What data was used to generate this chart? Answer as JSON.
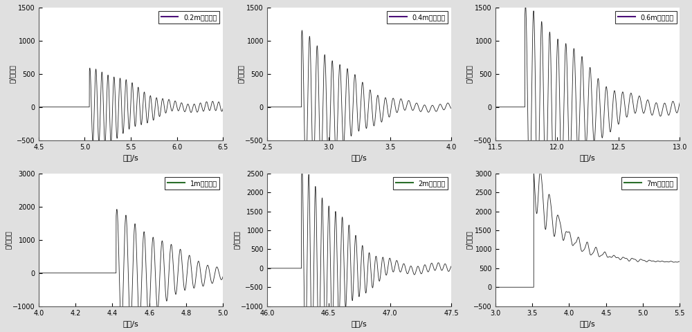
{
  "subplots": [
    {
      "legend_label": "0.2m冲击高度",
      "xlim": [
        4.5,
        6.5
      ],
      "xticks": [
        4.5,
        5.0,
        5.5,
        6.0,
        6.5
      ],
      "ylim": [
        -500,
        1500
      ],
      "yticks": [
        -500,
        0,
        500,
        1000,
        1500
      ],
      "impact_time": 5.05,
      "peak": 480,
      "decay_rate": 1.5,
      "freq": 15.0,
      "secondary_amp": 0.55,
      "line_color": "#222222",
      "row": 0,
      "col": 0
    },
    {
      "legend_label": "0.4m冲击高度",
      "xlim": [
        2.5,
        4.0
      ],
      "xticks": [
        2.5,
        3.0,
        3.5,
        4.0
      ],
      "ylim": [
        -500,
        1500
      ],
      "yticks": [
        -500,
        0,
        500,
        1000,
        1500
      ],
      "impact_time": 2.78,
      "peak": 950,
      "decay_rate": 2.5,
      "freq": 16.0,
      "secondary_amp": 0.55,
      "line_color": "#222222",
      "row": 0,
      "col": 1
    },
    {
      "legend_label": "0.6m冲击高度",
      "xlim": [
        11.5,
        13.0
      ],
      "xticks": [
        11.5,
        12.0,
        12.5,
        13.0
      ],
      "ylim": [
        -500,
        1500
      ],
      "yticks": [
        -500,
        0,
        500,
        1000,
        1500
      ],
      "impact_time": 11.74,
      "peak": 1260,
      "decay_rate": 2.0,
      "freq": 15.0,
      "secondary_amp": 0.55,
      "line_color": "#222222",
      "row": 0,
      "col": 2
    },
    {
      "legend_label": "1m冲击高度",
      "xlim": [
        4.0,
        5.0
      ],
      "xticks": [
        4.0,
        4.2,
        4.4,
        4.6,
        4.8,
        5.0
      ],
      "ylim": [
        -1000,
        3000
      ],
      "yticks": [
        -1000,
        0,
        1000,
        2000,
        3000
      ],
      "impact_time": 4.42,
      "peak": 1550,
      "decay_rate": 3.5,
      "freq": 20.0,
      "secondary_amp": 0.6,
      "line_color": "#222222",
      "row": 1,
      "col": 0
    },
    {
      "legend_label": "2m冲击高度",
      "xlim": [
        46.0,
        47.5
      ],
      "xticks": [
        46.0,
        46.5,
        47.0,
        47.5
      ],
      "ylim": [
        -1000,
        2500
      ],
      "yticks": [
        -1000,
        -500,
        0,
        500,
        1000,
        1500,
        2000,
        2500
      ],
      "impact_time": 46.28,
      "peak": 2100,
      "decay_rate": 2.8,
      "freq": 18.0,
      "secondary_amp": 0.65,
      "line_color": "#222222",
      "row": 1,
      "col": 1
    },
    {
      "legend_label": "7m冲击高度",
      "xlim": [
        3.0,
        5.5
      ],
      "xticks": [
        3.0,
        3.5,
        4.0,
        4.5,
        5.0,
        5.5
      ],
      "ylim": [
        -500,
        3000
      ],
      "yticks": [
        -500,
        0,
        500,
        1000,
        1500,
        2000,
        2500,
        3000
      ],
      "impact_time": 3.52,
      "peak": 2900,
      "step_level": 650,
      "decay_rate": 2.5,
      "freq": 8.0,
      "secondary_amp": 0.4,
      "line_color": "#222222",
      "row": 1,
      "col": 2
    }
  ],
  "xlabel": "时间/s",
  "ylabel": "力/特斯拉",
  "bg_color": "#ffffff",
  "fig_facecolor": "#e0e0e0",
  "legend_line_colors": [
    "#4b1078",
    "#4b1078",
    "#4b1078",
    "#2a6e2a",
    "#2a6e2a",
    "#2a6e2a"
  ]
}
